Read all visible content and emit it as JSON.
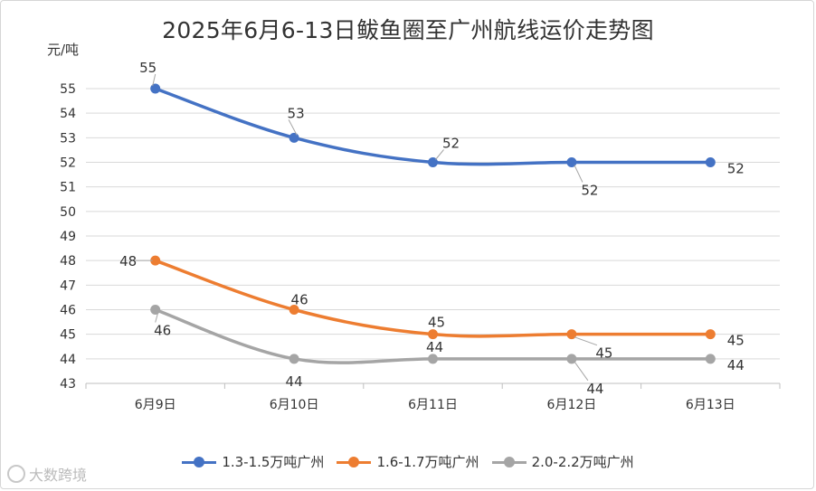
{
  "chart_data": {
    "type": "line",
    "title": "2025年6月6-13日鲅鱼圈至广州航线运价走势图",
    "ylabel": "元/吨",
    "xlabel": "",
    "categories": [
      "6月9日",
      "6月10日",
      "6月11日",
      "6月12日",
      "6月13日"
    ],
    "ylim": [
      43,
      55
    ],
    "yticks": [
      43,
      44,
      45,
      46,
      47,
      48,
      49,
      50,
      51,
      52,
      53,
      54,
      55
    ],
    "grid": true,
    "legend_position": "bottom",
    "series": [
      {
        "name": "1.3-1.5万吨广州",
        "color": "#4472c4",
        "values": [
          55,
          53,
          52,
          52,
          52
        ],
        "data_labels": [
          "55",
          "53",
          "52",
          "52",
          "52"
        ]
      },
      {
        "name": "1.6-1.7万吨广州",
        "color": "#ed7d31",
        "values": [
          48,
          46,
          45,
          45,
          45
        ],
        "data_labels": [
          "48",
          "46",
          "45",
          "45",
          "45"
        ]
      },
      {
        "name": "2.0-2.2万吨广州",
        "color": "#a5a5a5",
        "values": [
          46,
          44,
          44,
          44,
          44
        ],
        "data_labels": [
          "46",
          "44",
          "44",
          "44",
          "44"
        ]
      }
    ]
  },
  "watermark": {
    "text": "大数跨境",
    "icon": "watermark-logo-icon"
  }
}
